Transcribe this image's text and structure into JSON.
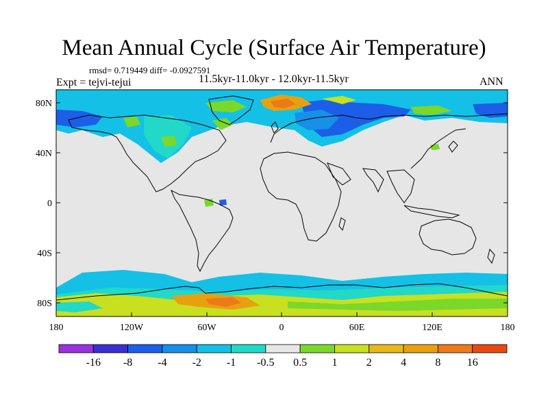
{
  "title": "Mean Annual Cycle (Surface Air Temperature)",
  "stats": "rmsd= 0.719449 diff= -0.0927591",
  "subtitle": "11.5kyr-11.0kyr - 12.0kyr-11.5kyr",
  "expt": "Expt = tejvi-tejui",
  "season": "ANN",
  "lat_ticks": [
    "80N",
    "40N",
    "0",
    "40S",
    "80S"
  ],
  "lon_ticks": [
    "180",
    "120W",
    "60W",
    "0",
    "60E",
    "120E",
    "180"
  ],
  "colorbar": {
    "labels": [
      "-16",
      "-8",
      "-4",
      "-2",
      "-1",
      "-0.5",
      "0.5",
      "1",
      "2",
      "4",
      "8",
      "16"
    ],
    "colors": [
      "#9a32e0",
      "#3a2fd2",
      "#1c5ee8",
      "#1690e8",
      "#14c0e6",
      "#22d8c8",
      "#e6e6e6",
      "#7ad82a",
      "#c8e020",
      "#e8b81a",
      "#e8a010",
      "#ec7a18",
      "#e84a14"
    ]
  },
  "colors": {
    "land_background": "#e6e6e6",
    "coastline": "#000000",
    "cold": "#1690e8",
    "cool": "#14c0e6",
    "cyan": "#22d8c8",
    "blue": "#1c5ee8",
    "green": "#7ad82a",
    "yellow_green": "#c8e020",
    "orange": "#e8a010",
    "red_orange": "#ec7a18"
  }
}
